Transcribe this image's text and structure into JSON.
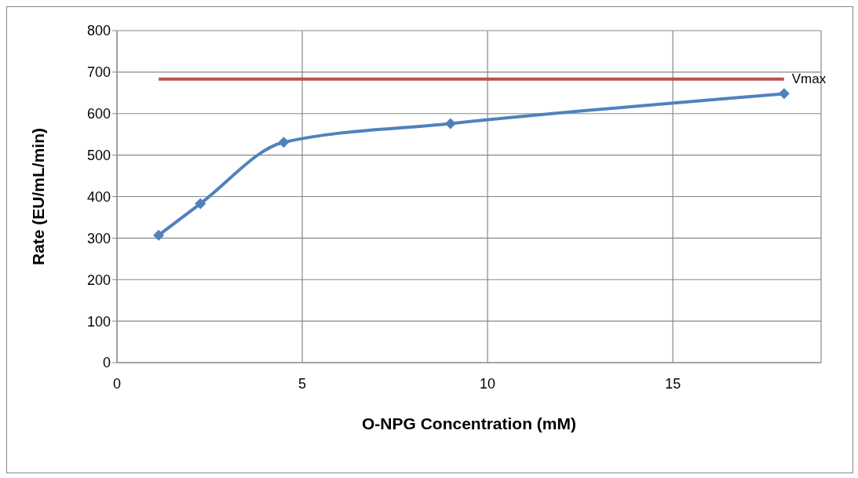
{
  "chart_data": {
    "type": "line",
    "xlabel": "O-NPG Concentration (mM)",
    "ylabel": "Rate (EU/mL/min)",
    "xlim": [
      0,
      19
    ],
    "xticks": [
      0,
      5,
      10,
      15
    ],
    "ylim": [
      0,
      800
    ],
    "yticks": [
      0,
      100,
      200,
      300,
      400,
      500,
      600,
      700,
      800
    ],
    "grid": true,
    "legend": false,
    "series": [
      {
        "color": "#4f81bd",
        "x": [
          1.125,
          2.25,
          4.5,
          9,
          18
        ],
        "values": [
          307,
          383,
          531,
          576,
          648
        ],
        "marker": "diamond"
      },
      {
        "name": "Vmax",
        "color": "#c0504d",
        "x": [
          1.125,
          18
        ],
        "values": [
          683,
          683
        ],
        "marker": "none"
      }
    ]
  }
}
